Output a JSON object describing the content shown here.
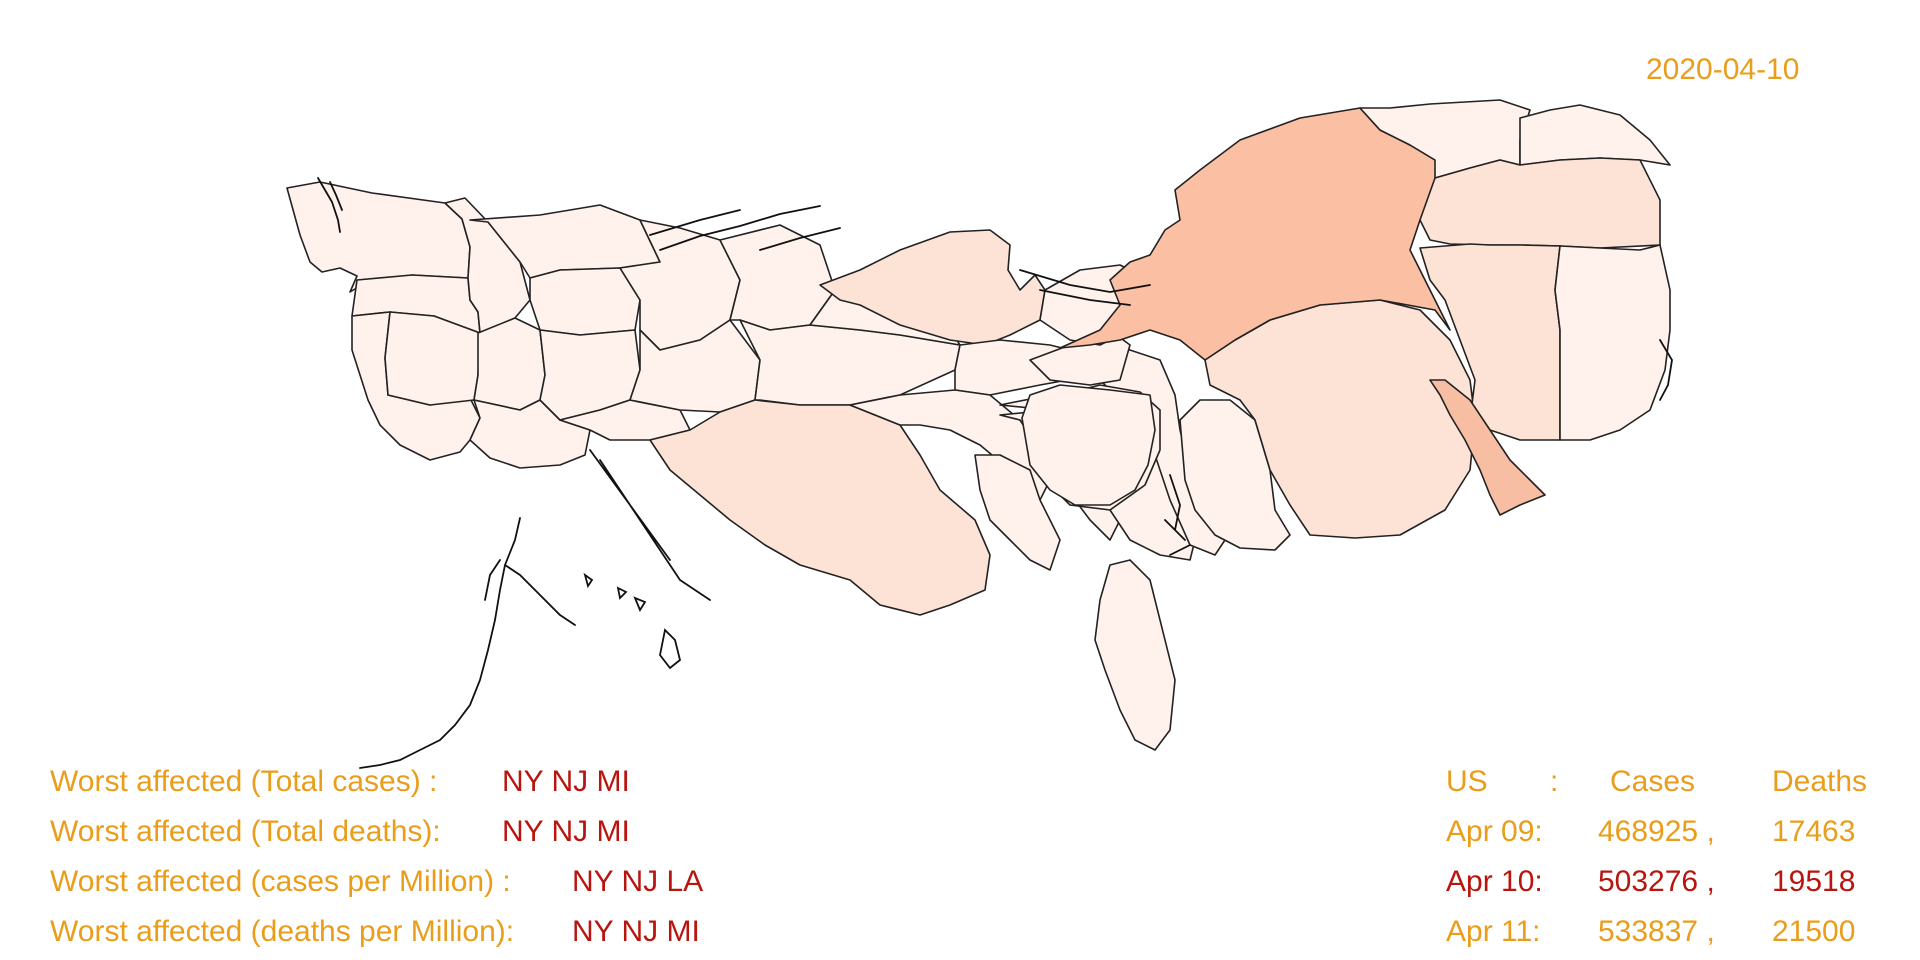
{
  "date": "2020-04-10",
  "colors": {
    "accent_orange": "#ea9d1a",
    "accent_red": "#b9150f",
    "fill_lightest": "#fff1eb",
    "fill_light": "#fde3d6",
    "fill_mid": "#fbd2bf",
    "fill_darkest": "#f8bea3"
  },
  "worst_affected": [
    {
      "label": "Worst affected (Total cases) :",
      "value": "NY NJ MI"
    },
    {
      "label": "Worst affected (Total deaths):",
      "value": "NY NJ MI"
    },
    {
      "label": "Worst affected (cases per Million) :",
      "value": "NY NJ LA"
    },
    {
      "label": "Worst affected (deaths per Million):",
      "value": "NY NJ MI"
    }
  ],
  "summary": {
    "header": {
      "country": "US",
      "sep": ":",
      "cases": "Cases",
      "deaths": "Deaths"
    },
    "rows": [
      {
        "date": "Apr 09:",
        "cases": "468925 ,",
        "deaths": "17463",
        "highlight": false
      },
      {
        "date": "Apr 10:",
        "cases": "503276 ,",
        "deaths": "19518",
        "highlight": true
      },
      {
        "date": "Apr 11:",
        "cases": "533837 ,",
        "deaths": "21500",
        "highlight": false
      }
    ]
  }
}
